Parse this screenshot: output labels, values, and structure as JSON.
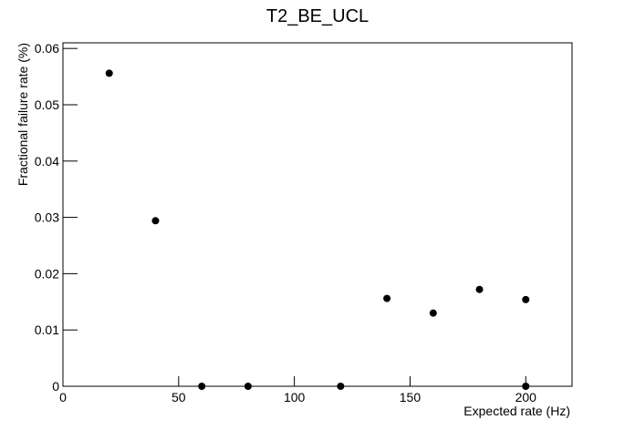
{
  "chart_data": {
    "type": "scatter",
    "title": "T2_BE_UCL",
    "x_label": "Expected rate (Hz)",
    "y_label": "Fractional failure rate (%)",
    "x": [
      20,
      40,
      60,
      80,
      120,
      140,
      160,
      180,
      200,
      200
    ],
    "values": [
      0.0556,
      0.0294,
      0,
      0,
      0,
      0.0156,
      0.013,
      0.0172,
      0.0154,
      0
    ],
    "color": "#000000",
    "xlim": [
      0,
      220
    ],
    "ylim": [
      0,
      0.061
    ],
    "xticks": [
      0,
      50,
      100,
      150,
      200
    ],
    "yticks": [
      0,
      0.01,
      0.02,
      0.03,
      0.04,
      0.05,
      0.06
    ],
    "grid": false
  }
}
